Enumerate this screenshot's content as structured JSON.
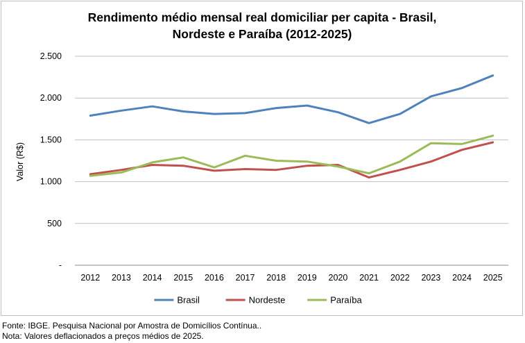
{
  "chart_data": {
    "type": "line",
    "title_lines": [
      "Rendimento médio mensal real domiciliar per capita - Brasil,",
      "Nordeste e Paraíba (2012-2025)"
    ],
    "xlabel": "",
    "ylabel": "Valor (R$)",
    "categories": [
      "2012",
      "2013",
      "2014",
      "2015",
      "2016",
      "2017",
      "2018",
      "2019",
      "2020",
      "2021",
      "2022",
      "2023",
      "2024",
      "2025"
    ],
    "ylim": [
      0,
      2500
    ],
    "yticks": [
      0,
      500,
      1000,
      1500,
      2000,
      2500
    ],
    "ytick_labels": [
      "-",
      "500",
      "1.000",
      "1.500",
      "2.000",
      "2.500"
    ],
    "grid": true,
    "legend_position": "bottom",
    "series": [
      {
        "name": "Brasil",
        "color": "#4f81bd",
        "values": [
          1790,
          1850,
          1900,
          1840,
          1810,
          1820,
          1880,
          1910,
          1830,
          1700,
          1810,
          2020,
          2120,
          2270
        ]
      },
      {
        "name": "Nordeste",
        "color": "#c0504d",
        "values": [
          1090,
          1140,
          1200,
          1190,
          1130,
          1150,
          1140,
          1190,
          1200,
          1050,
          1140,
          1240,
          1380,
          1470
        ]
      },
      {
        "name": "Paraíba",
        "color": "#9bbb59",
        "values": [
          1070,
          1110,
          1230,
          1290,
          1170,
          1310,
          1250,
          1240,
          1180,
          1100,
          1240,
          1460,
          1450,
          1550
        ]
      }
    ]
  },
  "footnotes": {
    "source": "Fonte: IBGE. Pesquisa Nacional por Amostra de Domicílios Contínua..",
    "note": "Nota: Valores deflacionados a preços médios de 2025."
  }
}
